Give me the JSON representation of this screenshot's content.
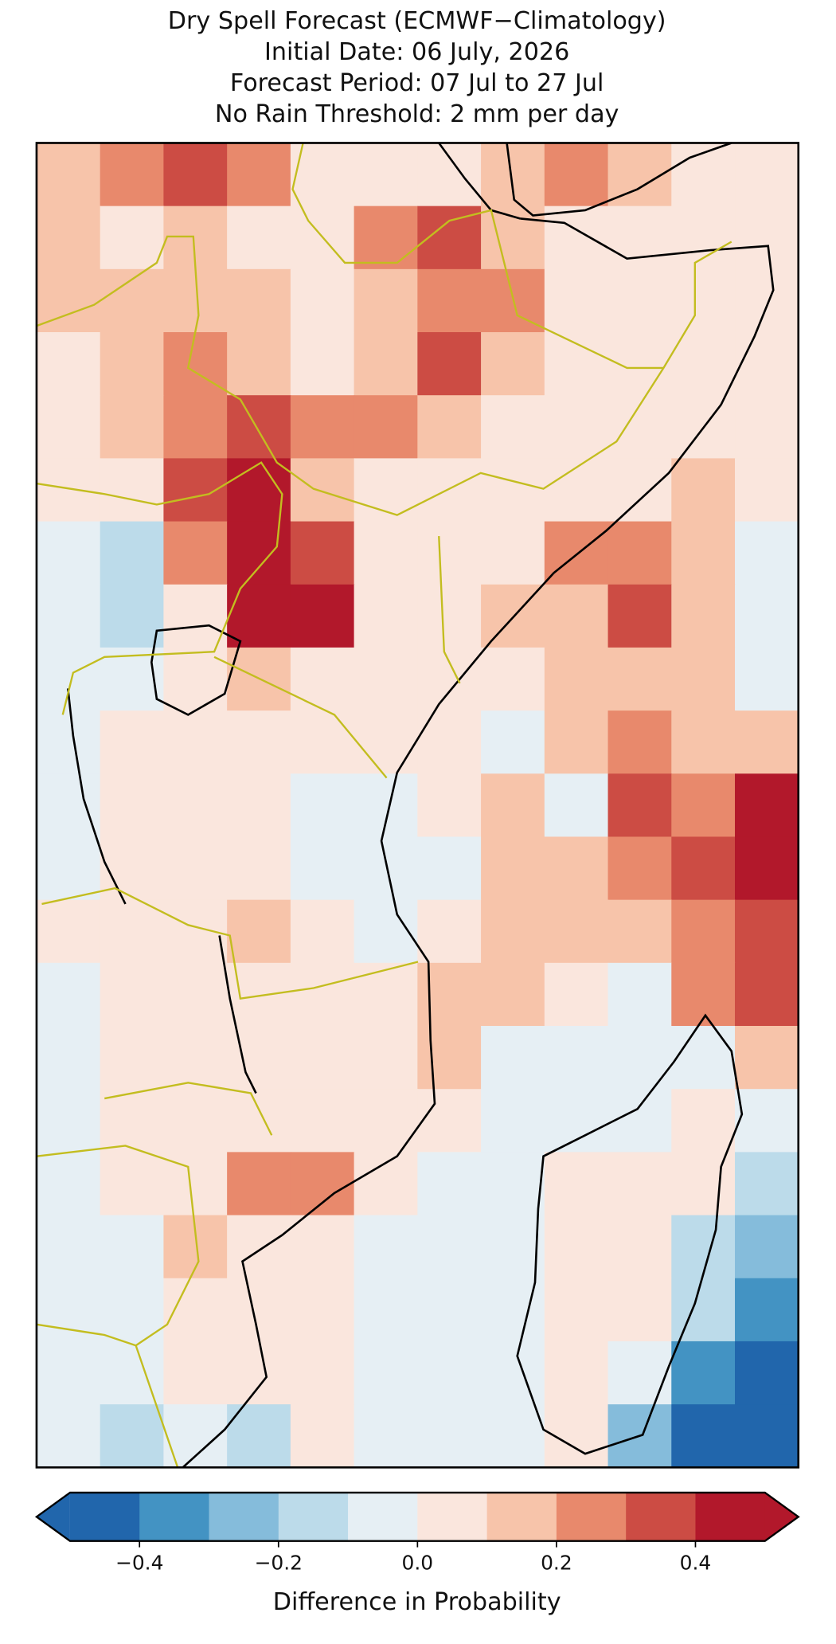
{
  "chart_data": {
    "type": "map",
    "title": [
      "Dry Spell Forecast (ECMWF−Climatology)",
      "Initial Date: 06 July, 2026",
      "Forecast Period: 07 Jul to 27 Jul",
      "No Rain Threshold: 2 mm per day"
    ],
    "grid": [
      [
        0.15,
        0.2,
        0.3,
        0.2,
        0.05,
        0.05,
        0.05,
        0.1,
        0.25,
        0.1,
        0.05,
        0.05
      ],
      [
        0.1,
        0.05,
        0.1,
        0.05,
        0.05,
        0.2,
        0.3,
        0.1,
        0.05,
        0.05,
        0.05,
        0.05
      ],
      [
        0.1,
        0.15,
        0.1,
        0.1,
        0.05,
        0.15,
        0.25,
        0.2,
        0.05,
        0.05,
        0.05,
        0.05
      ],
      [
        0.05,
        0.15,
        0.2,
        0.1,
        0.05,
        0.1,
        0.3,
        0.1,
        0.05,
        0.05,
        0.05,
        0.05
      ],
      [
        0.05,
        0.15,
        0.2,
        0.3,
        0.25,
        0.2,
        0.15,
        0.05,
        0.05,
        0.05,
        0.05,
        0.05
      ],
      [
        0.05,
        0.05,
        0.3,
        0.4,
        0.15,
        0.05,
        0.05,
        0.05,
        0.05,
        0.05,
        0.1,
        0.05
      ],
      [
        -0.05,
        -0.15,
        0.2,
        0.4,
        0.3,
        0.05,
        0.05,
        0.05,
        0.25,
        0.2,
        0.1,
        -0.05
      ],
      [
        -0.1,
        -0.2,
        0.05,
        0.45,
        0.45,
        0.05,
        0.05,
        0.1,
        0.15,
        0.3,
        0.1,
        -0.1
      ],
      [
        -0.1,
        -0.05,
        0.05,
        0.1,
        0.05,
        0.05,
        0.05,
        0.05,
        0.1,
        0.15,
        0.1,
        -0.05
      ],
      [
        -0.1,
        0.05,
        0.05,
        0.05,
        0.05,
        0.05,
        0.05,
        -0.05,
        0.1,
        0.25,
        0.15,
        0.1
      ],
      [
        -0.05,
        0.05,
        0.05,
        0.05,
        -0.05,
        -0.05,
        0.05,
        0.1,
        -0.05,
        0.3,
        0.25,
        0.4
      ],
      [
        -0.05,
        0.05,
        0.05,
        0.05,
        -0.05,
        -0.05,
        -0.05,
        0.1,
        0.15,
        0.25,
        0.3,
        0.45
      ],
      [
        0.05,
        0.05,
        0.05,
        0.1,
        0.05,
        -0.05,
        0.05,
        0.1,
        0.1,
        0.15,
        0.25,
        0.35
      ],
      [
        -0.05,
        0.05,
        0.05,
        0.05,
        0.05,
        0.05,
        0.15,
        0.1,
        0.05,
        -0.05,
        0.25,
        0.3
      ],
      [
        -0.05,
        0.05,
        0.05,
        0.05,
        0.05,
        0.05,
        0.15,
        -0.05,
        -0.05,
        -0.05,
        -0.1,
        0.1
      ],
      [
        -0.05,
        0.05,
        0.05,
        0.05,
        0.05,
        0.05,
        0.05,
        -0.05,
        -0.05,
        -0.05,
        0.05,
        -0.05
      ],
      [
        -0.05,
        0.05,
        0.05,
        0.25,
        0.2,
        0.05,
        -0.05,
        -0.05,
        0.05,
        0.05,
        0.05,
        -0.15
      ],
      [
        -0.05,
        -0.05,
        0.1,
        0.05,
        0.05,
        -0.05,
        -0.05,
        -0.05,
        0.05,
        0.05,
        -0.15,
        -0.3
      ],
      [
        -0.05,
        -0.05,
        0.05,
        0.05,
        0.05,
        -0.05,
        -0.05,
        -0.05,
        0.05,
        0.05,
        -0.2,
        -0.35
      ],
      [
        -0.05,
        -0.1,
        0.05,
        0.05,
        0.05,
        -0.05,
        -0.05,
        -0.05,
        0.05,
        -0.05,
        -0.35,
        -0.45
      ],
      [
        -0.05,
        -0.15,
        -0.05,
        -0.15,
        0.05,
        -0.05,
        -0.05,
        -0.05,
        0.05,
        -0.3,
        -0.45,
        -0.45
      ]
    ],
    "colorbar": {
      "label": "Difference in Probability",
      "lim": [
        -0.5,
        0.5
      ],
      "colors": [
        "#2166ac",
        "#4393c3",
        "#85bcdb",
        "#bcdbea",
        "#e6eff4",
        "#fae6dd",
        "#f7c4aa",
        "#e8896c",
        "#cc4c44",
        "#b2182b"
      ],
      "under_color": "#2166ac",
      "over_color": "#b2182b",
      "ticks": [
        {
          "value": -0.4,
          "label": "−0.4"
        },
        {
          "value": -0.2,
          "label": "−0.2"
        },
        {
          "value": 0.0,
          "label": "0.0"
        },
        0.2,
        0.4
      ]
    }
  }
}
